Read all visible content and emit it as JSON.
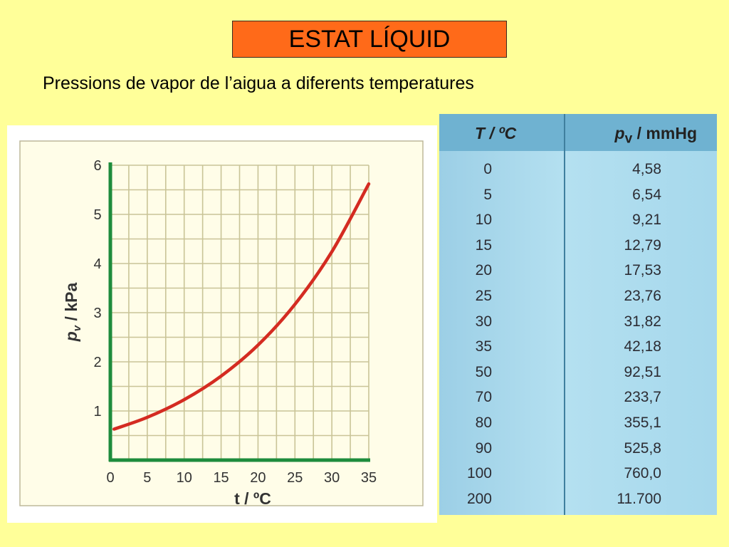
{
  "title": "ESTAT LÍQUID",
  "subtitle": "Pressions de vapor de l’aigua a diferents temperatures",
  "colors": {
    "background": "#ffff99",
    "title_box": "#ff6a19",
    "curve": "#d42b21",
    "axes": "#1e8c3c",
    "grid": "#c9c497"
  },
  "chart_data": {
    "type": "line",
    "xlabel": "t / ºC",
    "ylabel": "p_v / kPa",
    "xlim": [
      0,
      35
    ],
    "ylim": [
      0,
      6
    ],
    "xticks": [
      "0",
      "5",
      "10",
      "15",
      "20",
      "25",
      "30",
      "35"
    ],
    "yticks": [
      "1",
      "2",
      "3",
      "4",
      "5",
      "6"
    ],
    "grid": true,
    "series": [
      {
        "x": [
          0.5,
          5,
          10,
          15,
          20,
          25,
          30,
          35
        ],
        "y": [
          0.63,
          0.87,
          1.23,
          1.71,
          2.34,
          3.17,
          4.24,
          5.62
        ]
      }
    ]
  },
  "table": {
    "header_t": "T / ºC",
    "header_p_var": "p",
    "header_p_sub": "v",
    "header_p_unit": " / mmHg",
    "rows": [
      [
        "0",
        "4,58"
      ],
      [
        "5",
        "6,54"
      ],
      [
        "10",
        "9,21"
      ],
      [
        "15",
        "12,79"
      ],
      [
        "20",
        "17,53"
      ],
      [
        "25",
        "23,76"
      ],
      [
        "30",
        "31,82"
      ],
      [
        "35",
        "42,18"
      ],
      [
        "50",
        "92,51"
      ],
      [
        "70",
        "233,7"
      ],
      [
        "80",
        "355,1"
      ],
      [
        "90",
        "525,8"
      ],
      [
        "100",
        "760,0"
      ],
      [
        "200",
        "11.700"
      ]
    ]
  }
}
